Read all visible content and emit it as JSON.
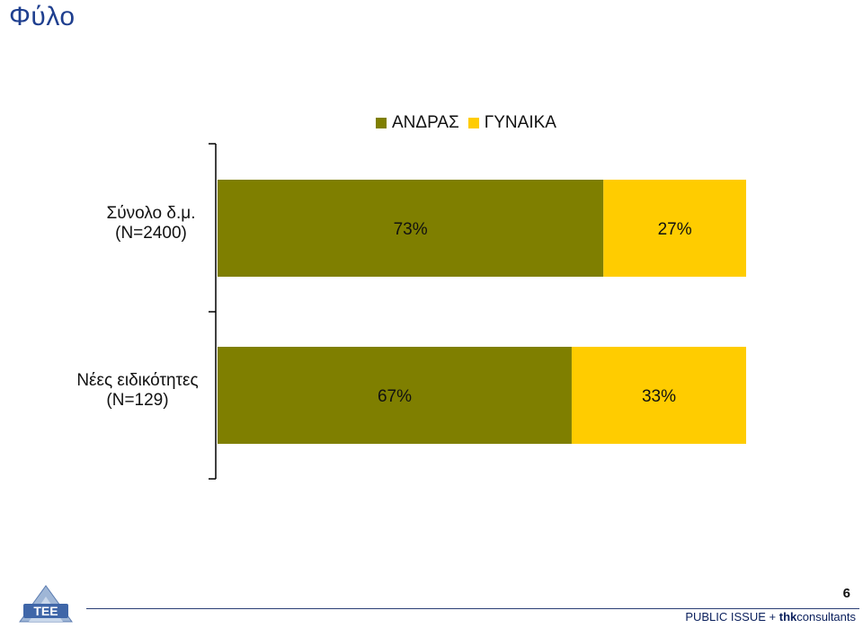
{
  "page": {
    "title": "Φύλο",
    "page_number": "6",
    "footer": {
      "brand_a": "PUBLIC ISSUE",
      "plus": " + ",
      "brand_b_bold": "thk",
      "brand_b_rest": "consultants"
    },
    "logo_icon": "tee-logo-icon"
  },
  "colors": {
    "male": "#7f7f00",
    "female": "#ffcc00",
    "title": "#1f3f8f",
    "axis": "#000000"
  },
  "chart_data": {
    "type": "bar",
    "orientation": "horizontal",
    "stacked": true,
    "percent_stacked": true,
    "categories": [
      [
        "Σύνολο δ.μ.",
        "(Ν=2400)"
      ],
      [
        "Νέες ειδικότητες",
        "(Ν=129)"
      ]
    ],
    "series": [
      {
        "name": "ΑΝΔΡΑΣ",
        "values": [
          73,
          67
        ],
        "labels": [
          "73%",
          "67%"
        ]
      },
      {
        "name": "ΓΥΝΑΙΚΑ",
        "values": [
          27,
          33
        ],
        "labels": [
          "27%",
          "33%"
        ]
      }
    ],
    "xlim": [
      0,
      100
    ],
    "legend": "top",
    "grid": false
  }
}
